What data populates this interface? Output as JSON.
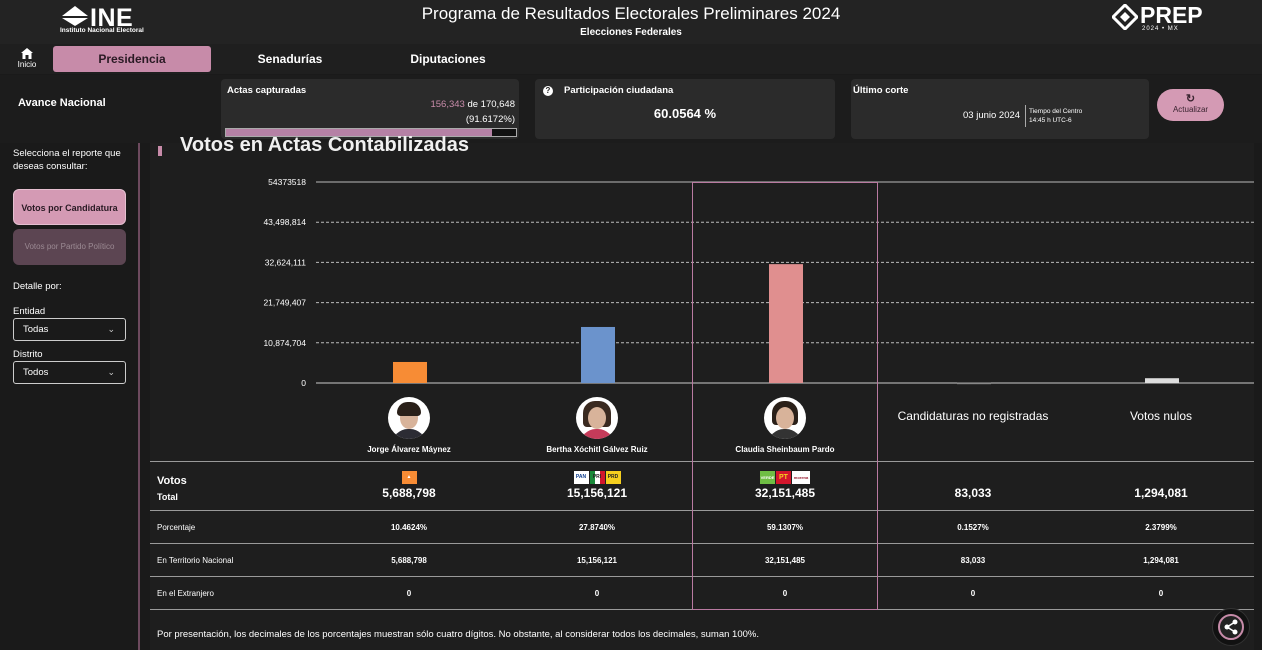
{
  "header": {
    "ine_logo_text": "INE",
    "ine_logo_sub": "Instituto Nacional Electoral",
    "title": "Programa de Resultados Electorales Preliminares 2024",
    "subtitle": "Elecciones Federales",
    "prep_logo_text": "PREP",
    "prep_logo_sub": "2024 • MX"
  },
  "nav": {
    "home_label": "Inicio",
    "home_icon": "home-icon",
    "tabs": [
      {
        "label": "Presidencia",
        "active": true
      },
      {
        "label": "Senadurías",
        "active": false
      },
      {
        "label": "Diputaciones",
        "active": false
      }
    ]
  },
  "stats": {
    "avance_label": "Avance Nacional",
    "actas": {
      "title": "Actas capturadas",
      "captured": "156,343",
      "of_text": "de 170,648",
      "percent": "(91.6172%)",
      "progress_fraction": 0.916172
    },
    "participacion": {
      "title": "Participación ciudadana",
      "value": "60.0564 %",
      "icon": "question-icon"
    },
    "corte": {
      "title": "Último corte",
      "date": "03 junio 2024",
      "tz_line1": "Tiempo del Centro",
      "tz_line2": "14:45 h UTC-6"
    },
    "refresh_label": "Actualizar",
    "refresh_icon": "refresh-icon"
  },
  "sidebar": {
    "question": "Selecciona el reporte que deseas consultar:",
    "btn_candidatura": "Votos por Candidatura",
    "btn_partido": "Votos por Partido Político",
    "detalle_label": "Detalle por:",
    "entidad_label": "Entidad",
    "entidad_value": "Todas",
    "distrito_label": "Distrito",
    "distrito_value": "Todos"
  },
  "main": {
    "section_title": "Votos en Actas Contabilizadas",
    "votos_label": "Votos",
    "total_label": "Total",
    "row_labels": {
      "porcentaje": "Porcentaje",
      "territorio": "En Territorio Nacional",
      "extranjero": "En el Extranjero"
    },
    "footnote": "Por presentación, los decimales de los porcentajes muestran sólo cuatro dígitos. No obstante, al considerar todos los decimales, suman 100%.",
    "share_icon": "share-icon"
  },
  "candidates": [
    {
      "name": "Jorge Álvarez Máynez",
      "total": "5,688,798",
      "pct": "10.4624%",
      "territorio": "5,688,798",
      "extranjero": "0",
      "parties": [
        "MC"
      ]
    },
    {
      "name": "Bertha Xóchitl Gálvez Ruiz",
      "total": "15,156,121",
      "pct": "27.8740%",
      "territorio": "15,156,121",
      "extranjero": "0",
      "parties": [
        "PAN",
        "PRI",
        "PRD"
      ]
    },
    {
      "name": "Claudia Sheinbaum Pardo",
      "total": "32,151,485",
      "pct": "59.1307%",
      "territorio": "32,151,485",
      "extranjero": "0",
      "parties": [
        "VERDE",
        "PT",
        "morena"
      ]
    },
    {
      "name": "Candidaturas no registradas",
      "total": "83,033",
      "pct": "0.1527%",
      "territorio": "83,033",
      "extranjero": "0",
      "parties": []
    },
    {
      "name": "Votos nulos",
      "total": "1,294,081",
      "pct": "2.3799%",
      "territorio": "1,294,081",
      "extranjero": "0",
      "parties": []
    }
  ],
  "colors": {
    "accent": "#c78ba9",
    "mc": "#f78c35",
    "xochitl": "#6b93cc",
    "claudia": "#e08f8f",
    "no_registradas": "#888888",
    "nulos": "#dddddd"
  },
  "chart_data": {
    "type": "bar",
    "categories": [
      "Jorge Álvarez Máynez",
      "Bertha Xóchitl Gálvez Ruiz",
      "Claudia Sheinbaum Pardo",
      "Candidaturas no registradas",
      "Votos nulos"
    ],
    "values": [
      5688798,
      15156121,
      32151485,
      83033,
      1294081
    ],
    "colors": [
      "#f78c35",
      "#6b93cc",
      "#e08f8f",
      "#888888",
      "#dddddd"
    ],
    "yticks": [
      0,
      10874704,
      21749407,
      32624111,
      43498814,
      54373518
    ],
    "ytick_labels": [
      "0",
      "10,874,704",
      "21,749,407",
      "32,624,111",
      "43,498,814",
      "54373518"
    ],
    "ylim": [
      0,
      54373518
    ],
    "grid": true
  }
}
